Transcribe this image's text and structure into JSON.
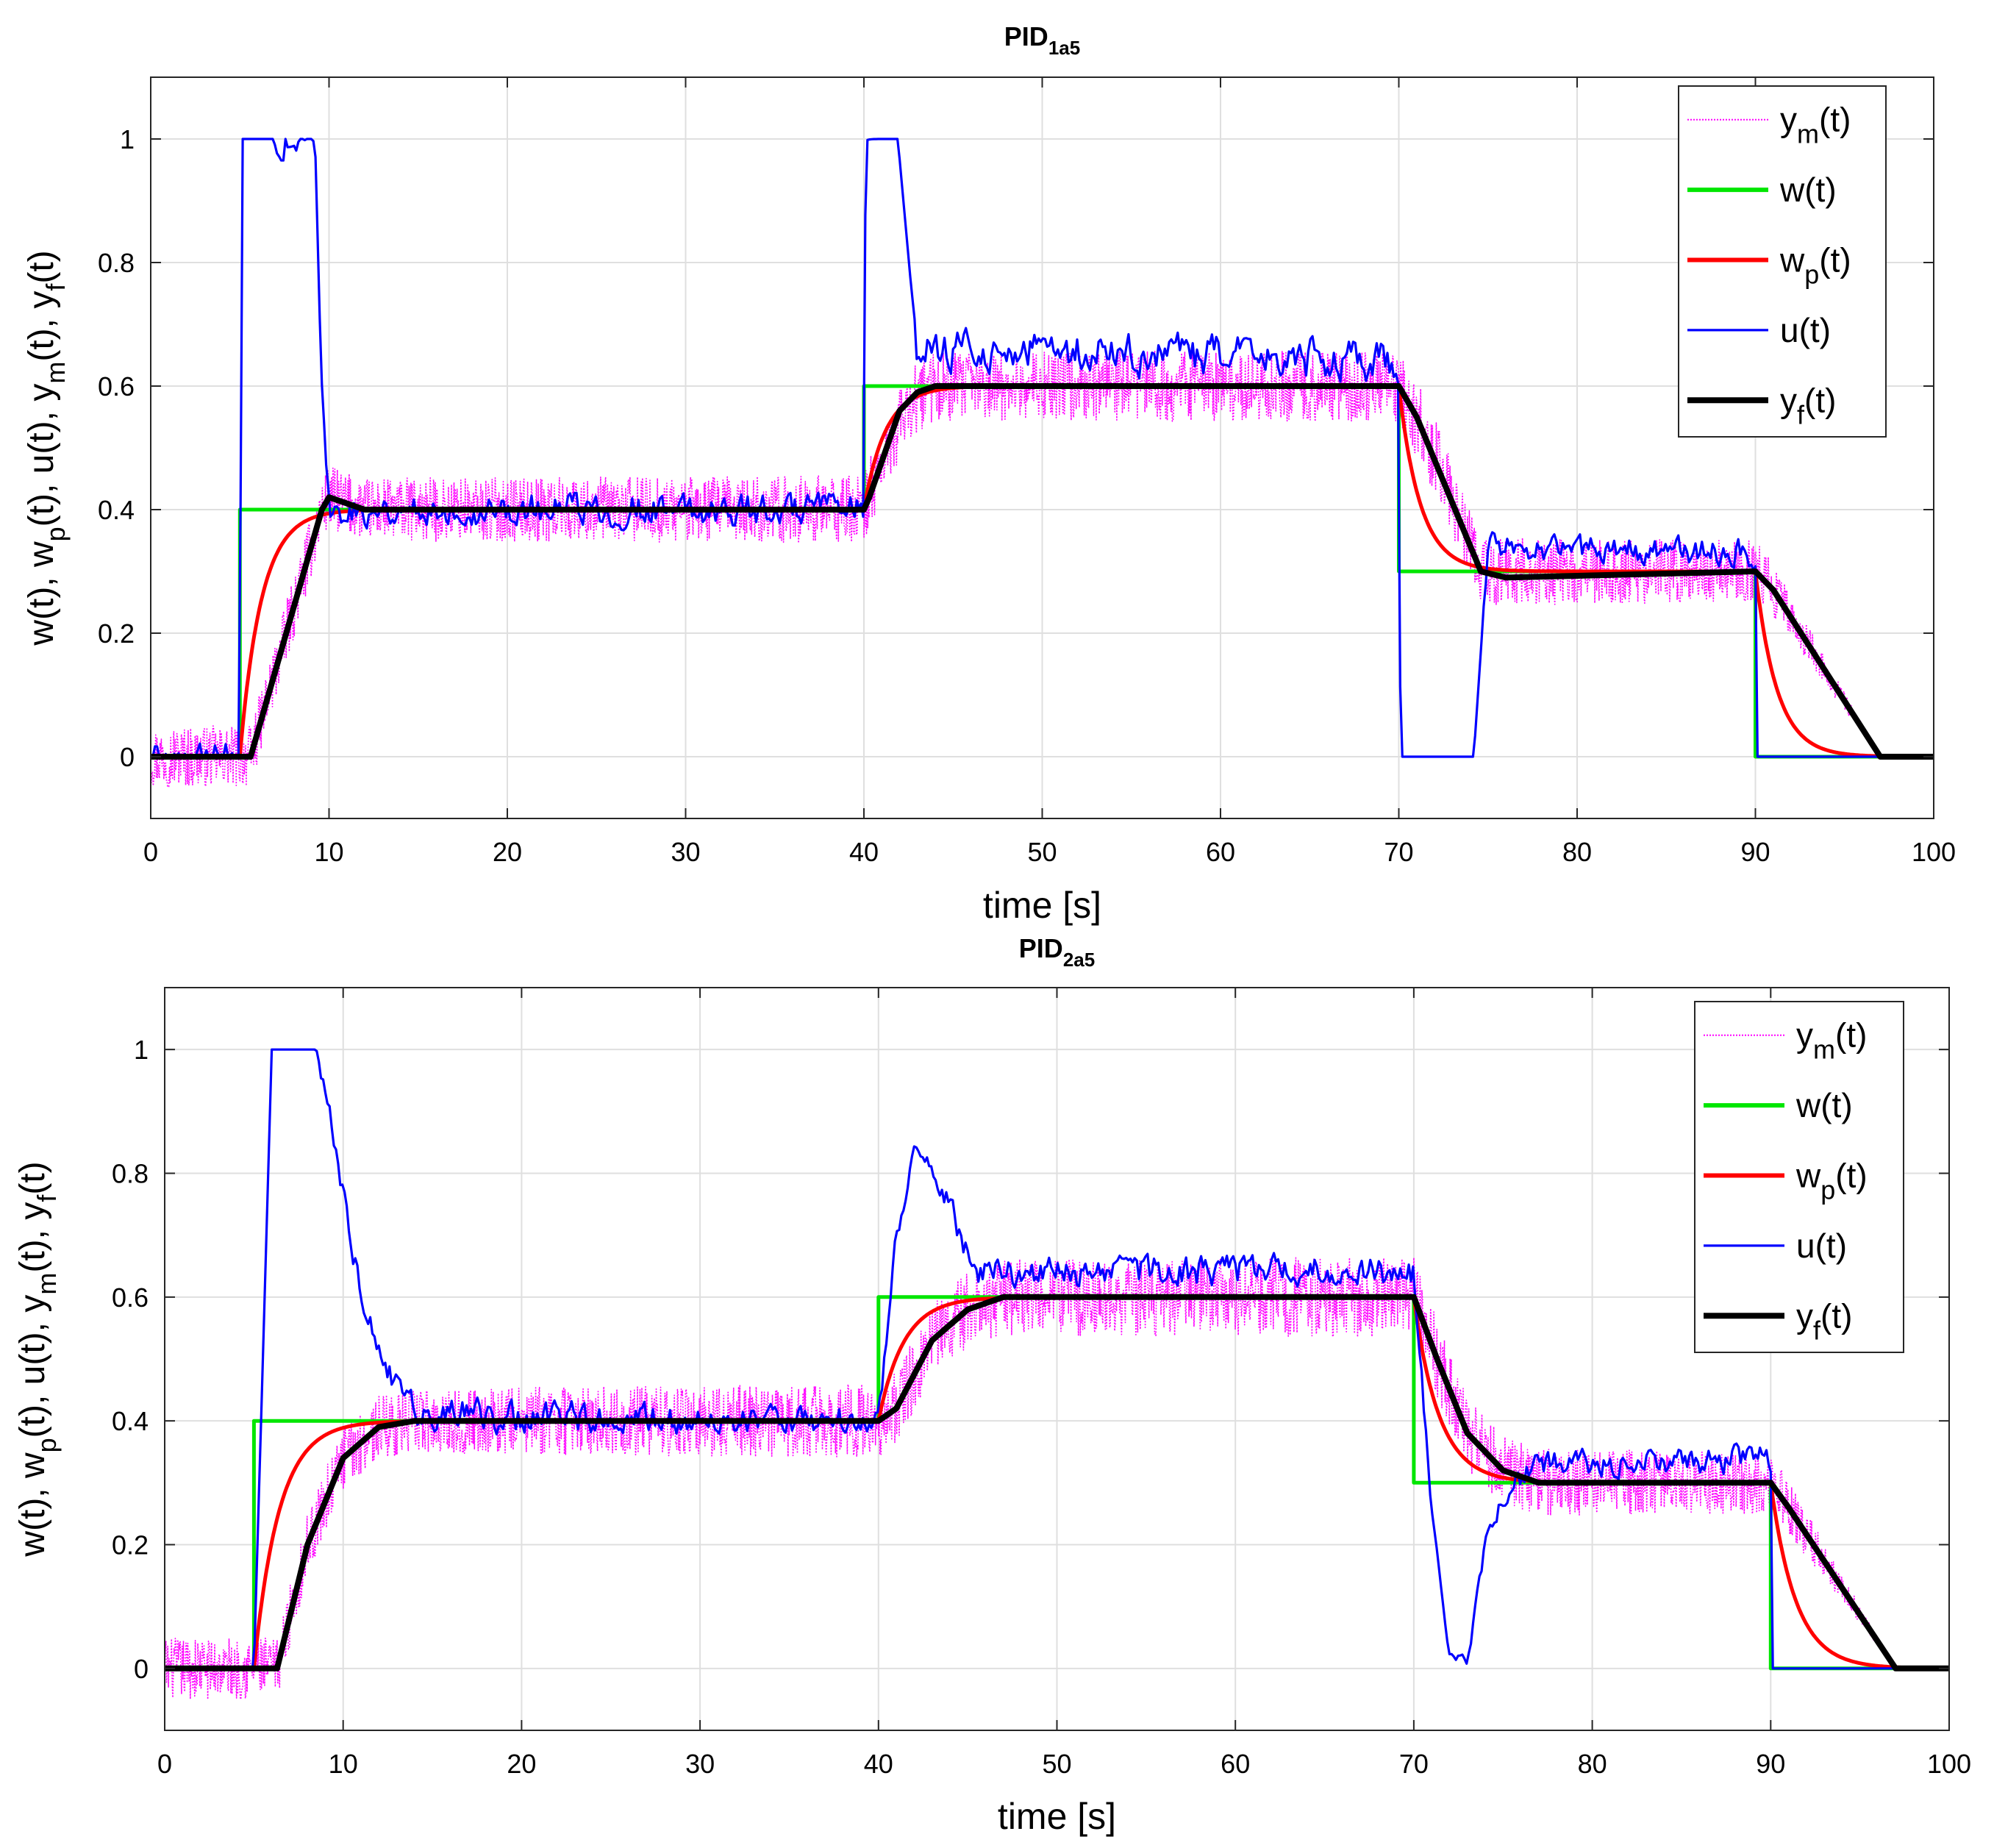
{
  "chart_data": [
    {
      "type": "line",
      "title": "PID",
      "title_sub": "1a5",
      "xlabel": "time [s]",
      "ylabel_parts": [
        [
          "w(t), w",
          ""
        ],
        [
          "p",
          "sub"
        ],
        [
          "(t), u(t), y",
          ""
        ],
        [
          "m",
          "sub"
        ],
        [
          "(t), y",
          ""
        ],
        [
          "f",
          "sub"
        ],
        [
          "(t)",
          ""
        ]
      ],
      "xlim": [
        0,
        100
      ],
      "ylim": [
        -0.1,
        1.1
      ],
      "xticks": [
        0,
        10,
        20,
        30,
        40,
        50,
        60,
        70,
        80,
        90,
        100
      ],
      "yticks": [
        0,
        0.2,
        0.4,
        0.6,
        0.8,
        1
      ],
      "ytick_labels": [
        "0",
        "0.2",
        "0.4",
        "0.6",
        "0.8",
        "1"
      ],
      "grid": true,
      "legend_position": "top-right",
      "series": [
        {
          "name": "y_m(t)",
          "label": "y",
          "sub": "m",
          "suffix": "(t)",
          "color": "#ff00ff",
          "style": "dotted",
          "base": [
            [
              0,
              0
            ],
            [
              5,
              0
            ],
            [
              5.6,
              0
            ],
            [
              9.6,
              0.4
            ],
            [
              10,
              0.42
            ],
            [
              12,
              0.4
            ],
            [
              40,
              0.4
            ],
            [
              40.2,
              0.42
            ],
            [
              42.5,
              0.57
            ],
            [
              44,
              0.6
            ],
            [
              70,
              0.6
            ],
            [
              71,
              0.55
            ],
            [
              74.6,
              0.3
            ],
            [
              90,
              0.3
            ],
            [
              91,
              0.27
            ],
            [
              97,
              0
            ],
            [
              100,
              0
            ]
          ],
          "noise": [
            [
              5.6,
              0.05
            ],
            [
              40,
              0.055
            ],
            [
              70,
              0.06
            ],
            [
              72,
              0.07
            ],
            [
              74,
              0.055
            ],
            [
              90,
              0.05
            ],
            [
              97,
              0.0
            ],
            [
              100,
              0
            ]
          ]
        },
        {
          "name": "w(t)",
          "label": "w",
          "sub": "",
          "suffix": "(t)",
          "color": "#00e600",
          "style": "solid",
          "points": [
            [
              0,
              0
            ],
            [
              5,
              0
            ],
            [
              5,
              0.4
            ],
            [
              40,
              0.4
            ],
            [
              40,
              0.6
            ],
            [
              70,
              0.6
            ],
            [
              70,
              0.3
            ],
            [
              90,
              0.3
            ],
            [
              90,
              0
            ],
            [
              100,
              0
            ]
          ]
        },
        {
          "name": "w_p(t)",
          "label": "w",
          "sub": "p",
          "suffix": "(t)",
          "color": "#ff0000",
          "style": "solid",
          "filter": {
            "tau": 1.2,
            "steps": [
              [
                0,
                0
              ],
              [
                5,
                0.4
              ],
              [
                40,
                0.6
              ],
              [
                70,
                0.3
              ],
              [
                90,
                0
              ]
            ]
          }
        },
        {
          "name": "u(t)",
          "label": "u",
          "sub": "",
          "suffix": "(t)",
          "color": "#0000ff",
          "style": "solid",
          "base": [
            [
              0,
              0
            ],
            [
              5,
              0
            ],
            [
              5.1,
              1
            ],
            [
              9.2,
              1
            ],
            [
              9.6,
              0.6
            ],
            [
              10,
              0.4
            ],
            [
              40,
              0.4
            ],
            [
              40.1,
              1
            ],
            [
              41.9,
              1
            ],
            [
              43,
              0.65
            ],
            [
              44,
              0.66
            ],
            [
              70,
              0.64
            ],
            [
              70.1,
              0
            ],
            [
              74.2,
              0
            ],
            [
              75,
              0.34
            ],
            [
              90,
              0.33
            ],
            [
              90.05,
              0
            ],
            [
              100,
              0
            ]
          ],
          "noise": [
            [
              10,
              0.04
            ],
            [
              40,
              0.04
            ],
            [
              40.1,
              0
            ],
            [
              42.5,
              0
            ],
            [
              43,
              0.05
            ],
            [
              70,
              0.05
            ],
            [
              70.1,
              0
            ],
            [
              74.6,
              0
            ],
            [
              75,
              0.035
            ],
            [
              90,
              0.035
            ],
            [
              90.05,
              0
            ],
            [
              100,
              0
            ]
          ]
        },
        {
          "name": "y_f(t)",
          "label": "y",
          "sub": "f",
          "suffix": "(t)",
          "color": "#000000",
          "style": "thick",
          "points": [
            [
              0,
              0
            ],
            [
              5,
              0
            ],
            [
              5.6,
              0
            ],
            [
              9.6,
              0.4
            ],
            [
              10,
              0.42
            ],
            [
              12,
              0.4
            ],
            [
              40,
              0.4
            ],
            [
              40.3,
              0.42
            ],
            [
              42,
              0.56
            ],
            [
              43,
              0.59
            ],
            [
              44,
              0.6
            ],
            [
              70,
              0.6
            ],
            [
              71,
              0.55
            ],
            [
              74.6,
              0.3
            ],
            [
              76,
              0.29
            ],
            [
              90,
              0.3
            ],
            [
              91,
              0.27
            ],
            [
              97,
              0
            ],
            [
              100,
              0
            ]
          ]
        }
      ]
    },
    {
      "type": "line",
      "title": "PID",
      "title_sub": "2a5",
      "xlabel": "time [s]",
      "ylabel_parts": [
        [
          "w(t), w",
          ""
        ],
        [
          "p",
          "sub"
        ],
        [
          "(t), u(t), y",
          ""
        ],
        [
          "m",
          "sub"
        ],
        [
          "(t), y",
          ""
        ],
        [
          "f",
          "sub"
        ],
        [
          "(t)",
          ""
        ]
      ],
      "xlim": [
        0,
        100
      ],
      "ylim": [
        -0.1,
        1.1
      ],
      "xticks": [
        0,
        10,
        20,
        30,
        40,
        50,
        60,
        70,
        80,
        90,
        100
      ],
      "yticks": [
        0,
        0.2,
        0.4,
        0.6,
        0.8,
        1
      ],
      "ytick_labels": [
        "0",
        "0.2",
        "0.4",
        "0.6",
        "0.8",
        "1"
      ],
      "grid": true,
      "legend_position": "top-right",
      "series": [
        {
          "name": "y_m(t)",
          "label": "y",
          "sub": "m",
          "suffix": "(t)",
          "color": "#ff00ff",
          "style": "dotted",
          "base": [
            [
              0,
              0
            ],
            [
              5,
              0
            ],
            [
              6.3,
              0
            ],
            [
              8,
              0.2
            ],
            [
              10,
              0.34
            ],
            [
              12,
              0.39
            ],
            [
              14,
              0.4
            ],
            [
              40,
              0.4
            ],
            [
              41,
              0.42
            ],
            [
              43,
              0.53
            ],
            [
              45,
              0.58
            ],
            [
              47,
              0.6
            ],
            [
              70,
              0.6
            ],
            [
              71.3,
              0.5
            ],
            [
              73,
              0.38
            ],
            [
              75,
              0.32
            ],
            [
              77,
              0.3
            ],
            [
              90,
              0.3
            ],
            [
              91,
              0.26
            ],
            [
              97,
              0
            ],
            [
              100,
              0
            ]
          ],
          "noise": [
            [
              6.3,
              0.05
            ],
            [
              40,
              0.06
            ],
            [
              70,
              0.065
            ],
            [
              75,
              0.055
            ],
            [
              90,
              0.05
            ],
            [
              97,
              0.0
            ],
            [
              100,
              0
            ]
          ]
        },
        {
          "name": "w(t)",
          "label": "w",
          "sub": "",
          "suffix": "(t)",
          "color": "#00e600",
          "style": "solid",
          "points": [
            [
              0,
              0
            ],
            [
              5,
              0
            ],
            [
              5,
              0.4
            ],
            [
              40,
              0.4
            ],
            [
              40,
              0.6
            ],
            [
              70,
              0.6
            ],
            [
              70,
              0.3
            ],
            [
              90,
              0.3
            ],
            [
              90,
              0
            ],
            [
              100,
              0
            ]
          ]
        },
        {
          "name": "w_p(t)",
          "label": "w",
          "sub": "p",
          "suffix": "(t)",
          "color": "#ff0000",
          "style": "solid",
          "filter": {
            "tau": 1.4,
            "steps": [
              [
                0,
                0
              ],
              [
                5,
                0.4
              ],
              [
                40,
                0.6
              ],
              [
                70,
                0.3
              ],
              [
                90,
                0
              ]
            ]
          }
        },
        {
          "name": "u(t)",
          "label": "u",
          "sub": "",
          "suffix": "(t)",
          "color": "#0000ff",
          "style": "solid",
          "base": [
            [
              0,
              0
            ],
            [
              5,
              0
            ],
            [
              6,
              1
            ],
            [
              8.5,
              1
            ],
            [
              9.5,
              0.85
            ],
            [
              11,
              0.6
            ],
            [
              12.5,
              0.48
            ],
            [
              14,
              0.41
            ],
            [
              40,
              0.4
            ],
            [
              41,
              0.7
            ],
            [
              42,
              0.84
            ],
            [
              43,
              0.8
            ],
            [
              44,
              0.75
            ],
            [
              45,
              0.66
            ],
            [
              46,
              0.64
            ],
            [
              70,
              0.64
            ],
            [
              71,
              0.25
            ],
            [
              72,
              0.02
            ],
            [
              73,
              0.01
            ],
            [
              74,
              0.2
            ],
            [
              75,
              0.28
            ],
            [
              77,
              0.33
            ],
            [
              90,
              0.34
            ],
            [
              90.05,
              0
            ],
            [
              100,
              0
            ]
          ],
          "noise": [
            [
              8.5,
              0
            ],
            [
              9,
              0.03
            ],
            [
              12,
              0.04
            ],
            [
              40,
              0.035
            ],
            [
              42,
              0.02
            ],
            [
              45,
              0.04
            ],
            [
              70,
              0.04
            ],
            [
              71,
              0.02
            ],
            [
              72,
              0.01
            ],
            [
              74,
              0.02
            ],
            [
              76,
              0.035
            ],
            [
              90,
              0.035
            ],
            [
              90.05,
              0
            ],
            [
              100,
              0
            ]
          ]
        },
        {
          "name": "y_f(t)",
          "label": "y",
          "sub": "f",
          "suffix": "(t)",
          "color": "#000000",
          "style": "thick",
          "points": [
            [
              0,
              0
            ],
            [
              5,
              0
            ],
            [
              6.3,
              0
            ],
            [
              8,
              0.2
            ],
            [
              10,
              0.34
            ],
            [
              12,
              0.39
            ],
            [
              14,
              0.4
            ],
            [
              40,
              0.4
            ],
            [
              41,
              0.42
            ],
            [
              43,
              0.53
            ],
            [
              45,
              0.58
            ],
            [
              47,
              0.6
            ],
            [
              70,
              0.6
            ],
            [
              71.3,
              0.5
            ],
            [
              73,
              0.38
            ],
            [
              75,
              0.32
            ],
            [
              77,
              0.3
            ],
            [
              90,
              0.3
            ],
            [
              91,
              0.26
            ],
            [
              97,
              0
            ],
            [
              100,
              0
            ]
          ]
        }
      ]
    }
  ]
}
